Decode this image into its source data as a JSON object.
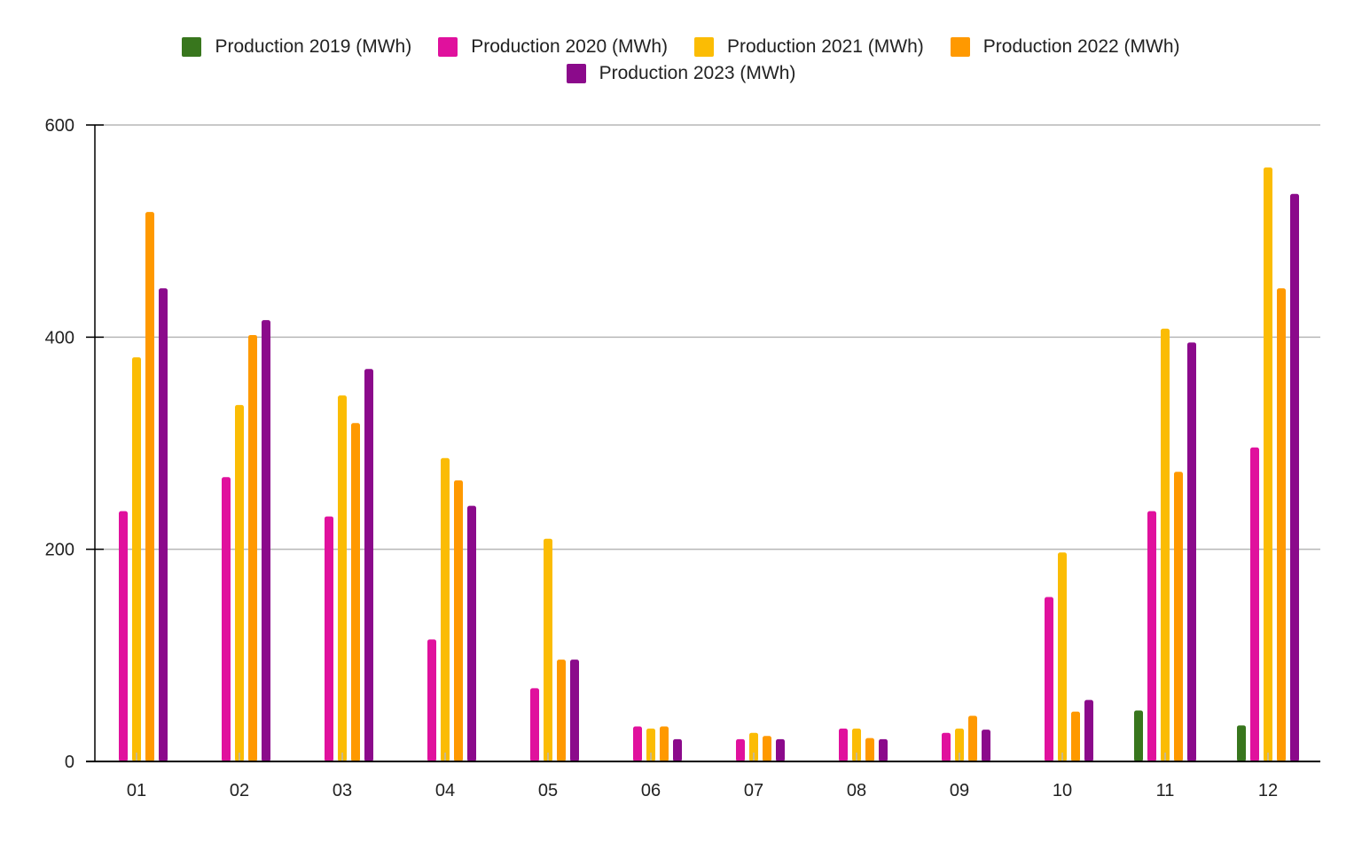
{
  "chart_data": {
    "type": "bar",
    "title": "",
    "xlabel": "",
    "ylabel": "",
    "categories": [
      "01",
      "02",
      "03",
      "04",
      "05",
      "06",
      "07",
      "08",
      "09",
      "10",
      "11",
      "12"
    ],
    "ylim": [
      0,
      600
    ],
    "yticks": [
      "0",
      "200",
      "400",
      "600"
    ],
    "grid": true,
    "legend_position": "top",
    "series": [
      {
        "name": "Production 2019 (MWh)",
        "color": "#38761d",
        "values": [
          null,
          null,
          null,
          null,
          null,
          null,
          null,
          null,
          null,
          null,
          48,
          34
        ]
      },
      {
        "name": "Production 2020 (MWh)",
        "color": "#e0119d",
        "values": [
          236,
          268,
          231,
          115,
          69,
          33,
          21,
          31,
          27,
          155,
          236,
          296
        ]
      },
      {
        "name": "Production 2021 (MWh)",
        "color": "#fbbc04",
        "values": [
          381,
          336,
          345,
          286,
          210,
          31,
          27,
          31,
          31,
          197,
          408,
          560
        ]
      },
      {
        "name": "Production 2022 (MWh)",
        "color": "#ff9900",
        "values": [
          518,
          402,
          319,
          265,
          96,
          33,
          24,
          22,
          43,
          47,
          273,
          446
        ]
      },
      {
        "name": "Production 2023 (MWh)",
        "color": "#8b0a8b",
        "values": [
          446,
          416,
          370,
          241,
          96,
          21,
          21,
          21,
          30,
          58,
          395,
          535
        ]
      }
    ]
  }
}
